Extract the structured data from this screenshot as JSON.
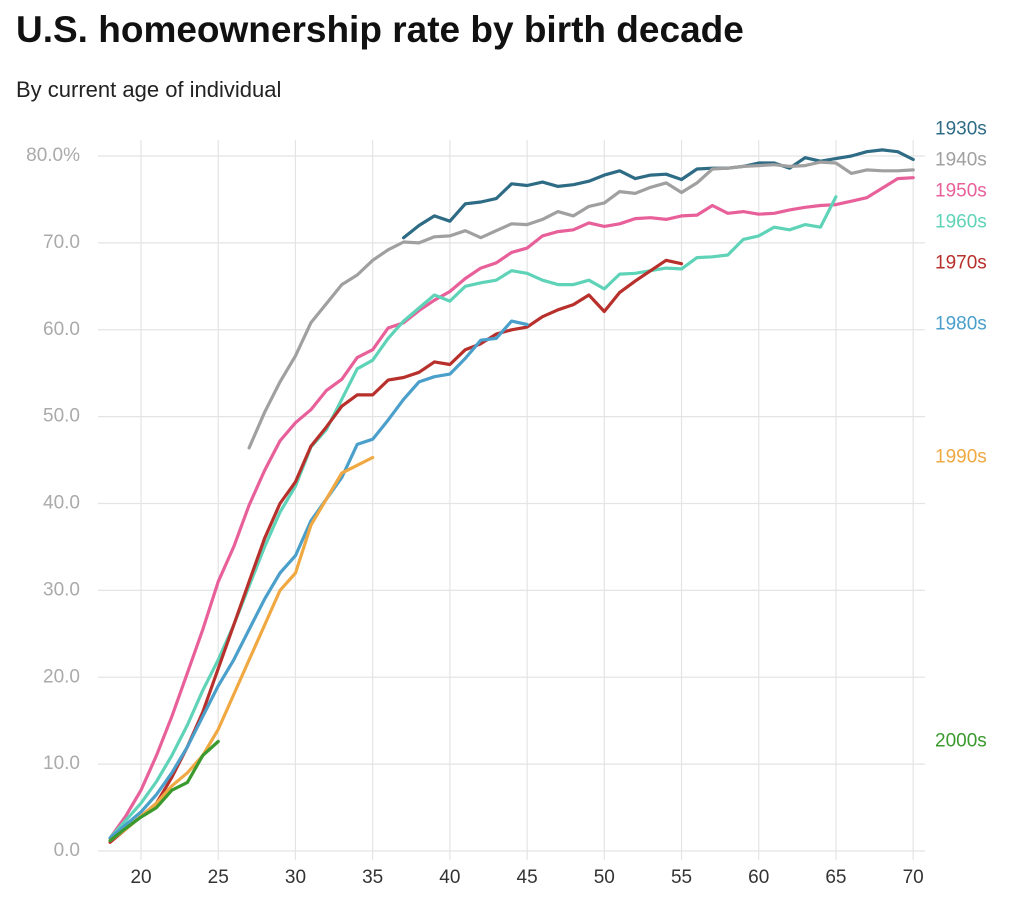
{
  "chart_data": {
    "type": "line",
    "title": "U.S. homeownership rate by birth decade",
    "subtitle": "By current age of individual",
    "x": [
      18,
      19,
      20,
      21,
      22,
      23,
      24,
      25,
      26,
      27,
      28,
      29,
      30,
      31,
      32,
      33,
      34,
      35,
      36,
      37,
      38,
      39,
      40,
      41,
      42,
      43,
      44,
      45,
      46,
      47,
      48,
      49,
      50,
      51,
      52,
      53,
      54,
      55,
      56,
      57,
      58,
      59,
      60,
      61,
      62,
      63,
      64,
      65,
      66,
      67,
      68,
      69,
      70
    ],
    "xlim": [
      17,
      71
    ],
    "xticks": [
      20,
      25,
      30,
      35,
      40,
      45,
      50,
      55,
      60,
      65,
      70
    ],
    "ylim": [
      0,
      80
    ],
    "yticks": [
      {
        "value": 0,
        "label": "0.0"
      },
      {
        "value": 10,
        "label": "10.0"
      },
      {
        "value": 20,
        "label": "20.0"
      },
      {
        "value": 30,
        "label": "30.0"
      },
      {
        "value": 40,
        "label": "40.0"
      },
      {
        "value": 50,
        "label": "50.0"
      },
      {
        "value": 60,
        "label": "60.0"
      },
      {
        "value": 70,
        "label": "70.0"
      },
      {
        "value": 80,
        "label": "80.0%"
      }
    ],
    "grid": true,
    "series": [
      {
        "name": "1930s",
        "color": "#2e6b85",
        "values": [
          null,
          null,
          null,
          null,
          null,
          null,
          null,
          null,
          null,
          null,
          null,
          null,
          null,
          null,
          null,
          null,
          null,
          null,
          null,
          70.6,
          72.0,
          73.1,
          72.5,
          74.5,
          74.7,
          75.1,
          76.8,
          76.6,
          77.0,
          76.5,
          76.7,
          77.1,
          77.8,
          78.3,
          77.4,
          77.8,
          77.9,
          77.3,
          78.5,
          78.6,
          78.6,
          78.8,
          79.2,
          79.2,
          78.6,
          79.8,
          79.4,
          79.7,
          80.0,
          80.5,
          80.7,
          80.5,
          79.6
        ]
      },
      {
        "name": "1940s",
        "color": "#a0a0a0",
        "values": [
          null,
          null,
          null,
          null,
          null,
          null,
          null,
          null,
          null,
          46.4,
          50.5,
          54,
          57,
          60.8,
          63,
          65.2,
          66.3,
          68,
          69.2,
          70.1,
          70,
          70.7,
          70.8,
          71.4,
          70.6,
          71.4,
          72.2,
          72.1,
          72.7,
          73.6,
          73.1,
          74.2,
          74.6,
          75.9,
          75.7,
          76.4,
          76.9,
          75.8,
          76.9,
          78.5,
          78.6,
          78.8,
          78.9,
          79.0,
          78.8,
          78.9,
          79.3,
          79.2,
          78.0,
          78.4,
          78.3,
          78.3,
          78.4
        ]
      },
      {
        "name": "1950s",
        "color": "#e8609a",
        "values": [
          1.5,
          4,
          7,
          11,
          15.5,
          20.5,
          25.5,
          31,
          35,
          39.8,
          43.8,
          47.2,
          49.3,
          50.8,
          53.0,
          54.3,
          56.8,
          57.7,
          60.2,
          60.8,
          62.2,
          63.4,
          64.4,
          65.9,
          67.1,
          67.7,
          68.9,
          69.4,
          70.8,
          71.3,
          71.5,
          72.3,
          71.9,
          72.2,
          72.8,
          72.9,
          72.7,
          73.1,
          73.2,
          74.3,
          73.4,
          73.6,
          73.3,
          73.4,
          73.8,
          74.1,
          74.3,
          74.4,
          74.8,
          75.2,
          76.3,
          77.4,
          77.5
        ]
      },
      {
        "name": "1960s",
        "color": "#5fd3b8",
        "values": [
          1.5,
          3.5,
          5.5,
          8,
          11,
          14.5,
          18.5,
          22,
          26,
          30.5,
          35,
          39,
          42,
          46.5,
          48.5,
          52,
          55.5,
          56.5,
          59,
          61,
          62.5,
          64,
          63.3,
          65,
          65.4,
          65.7,
          66.8,
          66.5,
          65.7,
          65.2,
          65.2,
          65.7,
          64.7,
          66.4,
          66.5,
          66.8,
          67.1,
          67.0,
          68.3,
          68.4,
          68.6,
          70.4,
          70.8,
          71.8,
          71.5,
          72.1,
          71.8,
          75.3,
          null,
          null,
          null,
          null,
          null
        ]
      },
      {
        "name": "1970s",
        "color": "#b8302c",
        "values": [
          1,
          2.5,
          4,
          5.5,
          8.5,
          12,
          16,
          21,
          26,
          31,
          36,
          40,
          42.5,
          46.6,
          48.8,
          51.2,
          52.5,
          52.5,
          54.2,
          54.5,
          55.1,
          56.3,
          56,
          57.7,
          58.4,
          59.5,
          60,
          60.3,
          61.5,
          62.3,
          62.9,
          64,
          62.1,
          64.3,
          65.6,
          66.8,
          68.0,
          67.6,
          null,
          null,
          null,
          null,
          null,
          null,
          null,
          null,
          null,
          null,
          null,
          null,
          null,
          null,
          null
        ]
      },
      {
        "name": "1980s",
        "color": "#4a9fcb",
        "values": [
          1.5,
          3,
          4.5,
          6.5,
          9,
          12,
          15.5,
          19,
          22,
          25.5,
          29,
          32,
          34,
          38,
          40.5,
          43,
          46.8,
          47.4,
          49.6,
          52,
          54,
          54.6,
          54.9,
          56.7,
          58.8,
          59,
          61,
          60.6,
          null,
          null,
          null,
          null,
          null,
          null,
          null,
          null,
          null,
          null,
          null,
          null,
          null,
          null,
          null,
          null,
          null,
          null,
          null,
          null,
          null,
          null,
          null,
          null,
          null
        ]
      },
      {
        "name": "1990s",
        "color": "#f0a842",
        "values": [
          1.2,
          2.5,
          4,
          5.5,
          7.5,
          9,
          11,
          14,
          18,
          22,
          26,
          30,
          32,
          37.5,
          40.5,
          43.5,
          44.4,
          45.3,
          null,
          null,
          null,
          null,
          null,
          null,
          null,
          null,
          null,
          null,
          null,
          null,
          null,
          null,
          null,
          null,
          null,
          null,
          null,
          null,
          null,
          null,
          null,
          null,
          null,
          null,
          null,
          null,
          null,
          null,
          null,
          null,
          null,
          null,
          null
        ]
      },
      {
        "name": "2000s",
        "color": "#3a9a2e",
        "values": [
          1.2,
          2.6,
          3.9,
          5,
          7,
          7.9,
          11,
          12.6,
          null,
          null,
          null,
          null,
          null,
          null,
          null,
          null,
          null,
          null,
          null,
          null,
          null,
          null,
          null,
          null,
          null,
          null,
          null,
          null,
          null,
          null,
          null,
          null,
          null,
          null,
          null,
          null,
          null,
          null,
          null,
          null,
          null,
          null,
          null,
          null,
          null,
          null,
          null,
          null,
          null,
          null,
          null,
          null,
          null
        ]
      }
    ]
  }
}
